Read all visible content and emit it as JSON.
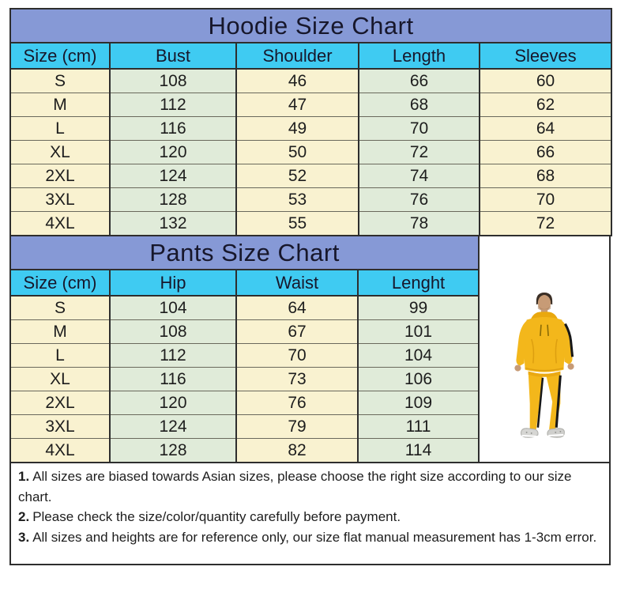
{
  "colors": {
    "title_bg": "#8699d6",
    "header_bg": "#3fcbf2",
    "cell_yellow": "#f9f2d0",
    "cell_green": "#e0ebd9",
    "border": "#2e2e2e",
    "inner_line": "#6a695c",
    "text": "#1d1d1d",
    "title_text": "#17172b",
    "hoodie_yellow": "#f3b71b",
    "stripe_black": "#181818"
  },
  "chart_data": [
    {
      "type": "table",
      "title": "Hoodie Size Chart",
      "columns": [
        "Size (cm)",
        "Bust",
        "Shoulder",
        "Length",
        "Sleeves"
      ],
      "rows": [
        [
          "S",
          "108",
          "46",
          "66",
          "60"
        ],
        [
          "M",
          "112",
          "47",
          "68",
          "62"
        ],
        [
          "L",
          "116",
          "49",
          "70",
          "64"
        ],
        [
          "XL",
          "120",
          "50",
          "72",
          "66"
        ],
        [
          "2XL",
          "124",
          "52",
          "74",
          "68"
        ],
        [
          "3XL",
          "128",
          "53",
          "76",
          "70"
        ],
        [
          "4XL",
          "132",
          "55",
          "78",
          "72"
        ]
      ]
    },
    {
      "type": "table",
      "title": "Pants Size Chart",
      "columns": [
        "Size (cm)",
        "Hip",
        "Waist",
        "Lenght"
      ],
      "rows": [
        [
          "S",
          "104",
          "64",
          "99"
        ],
        [
          "M",
          "108",
          "67",
          "101"
        ],
        [
          "L",
          "112",
          "70",
          "104"
        ],
        [
          "XL",
          "116",
          "73",
          "106"
        ],
        [
          "2XL",
          "120",
          "76",
          "109"
        ],
        [
          "3XL",
          "124",
          "79",
          "111"
        ],
        [
          "4XL",
          "128",
          "82",
          "114"
        ]
      ]
    }
  ],
  "notes": {
    "items": [
      {
        "num": "1.",
        "text": "All sizes are biased towards Asian sizes, please choose the right size according to our size chart."
      },
      {
        "num": "2.",
        "text": "Please check the size/color/quantity carefully before payment."
      },
      {
        "num": "3.",
        "text": "All sizes and heights are for reference only, our size flat manual measurement has 1-3cm error."
      }
    ]
  },
  "product_image": {
    "icon": "yellow-tracksuit-model-photo"
  }
}
